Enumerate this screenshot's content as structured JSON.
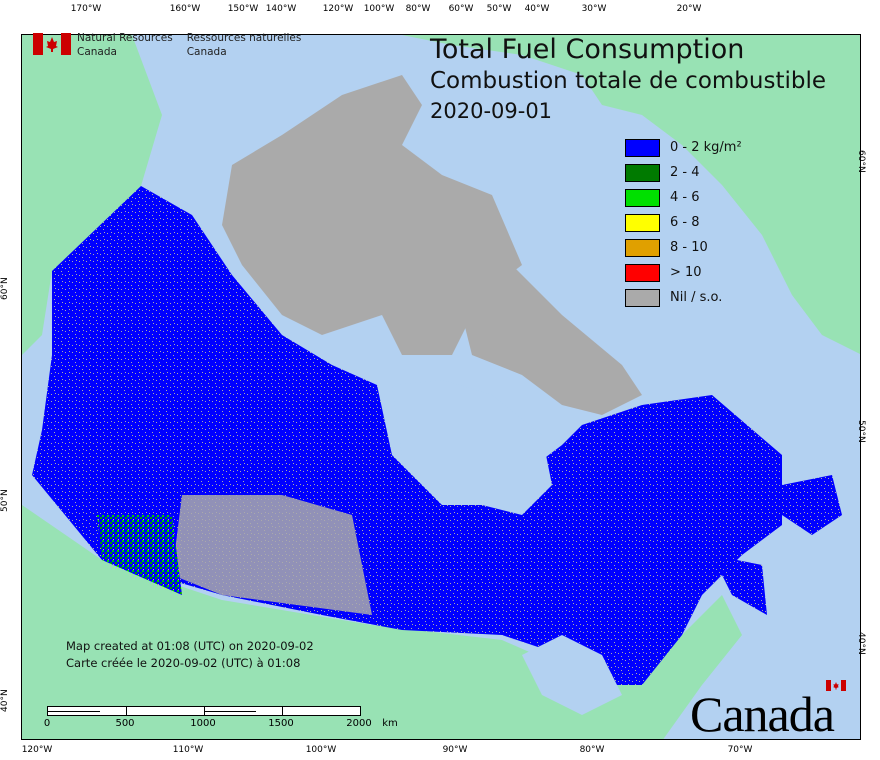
{
  "logo": {
    "en_line1": "Natural Resources",
    "en_line2": "Canada",
    "fr_line1": "Ressources naturelles",
    "fr_line2": "Canada"
  },
  "title": {
    "en": "Total Fuel Consumption",
    "fr": "Combustion totale de combustible",
    "date": "2020-09-01"
  },
  "legend": [
    {
      "label": "0 - 2 kg/m²",
      "color": "#0000ff"
    },
    {
      "label": "2 - 4",
      "color": "#007a00"
    },
    {
      "label": "4 - 6",
      "color": "#00e000"
    },
    {
      "label": "6 - 8",
      "color": "#ffff00"
    },
    {
      "label": "8 - 10",
      "color": "#e0a000"
    },
    {
      "label": "> 10",
      "color": "#ff0000"
    },
    {
      "label": "Nil / s.o.",
      "color": "#aaaaaa"
    }
  ],
  "note": {
    "en": "Map created at 01:08 (UTC) on 2020-09-02",
    "fr": "Carte créée le 2020-09-02 (UTC) à 01:08"
  },
  "scale": {
    "labels": [
      "0",
      "500",
      "1000",
      "1500",
      "2000"
    ],
    "unit": "km"
  },
  "wordmark": "Canada",
  "graticule": {
    "top": [
      "170°W",
      "160°W",
      "150°W",
      "140°W",
      "120°W",
      "100°W",
      "80°W",
      "60°W",
      "50°W",
      "40°W",
      "30°W",
      "20°W"
    ],
    "bottom": [
      "120°W",
      "110°W",
      "100°W",
      "90°W",
      "80°W",
      "70°W"
    ],
    "left": [
      "60°N",
      "50°N",
      "40°N"
    ],
    "right": [
      "60°N",
      "50°N",
      "40°N"
    ]
  },
  "colors": {
    "ocean": "#b3d1f1",
    "land_other": "#98e2b4",
    "nil": "#aaaaaa",
    "fire_low": "#0000ff"
  }
}
